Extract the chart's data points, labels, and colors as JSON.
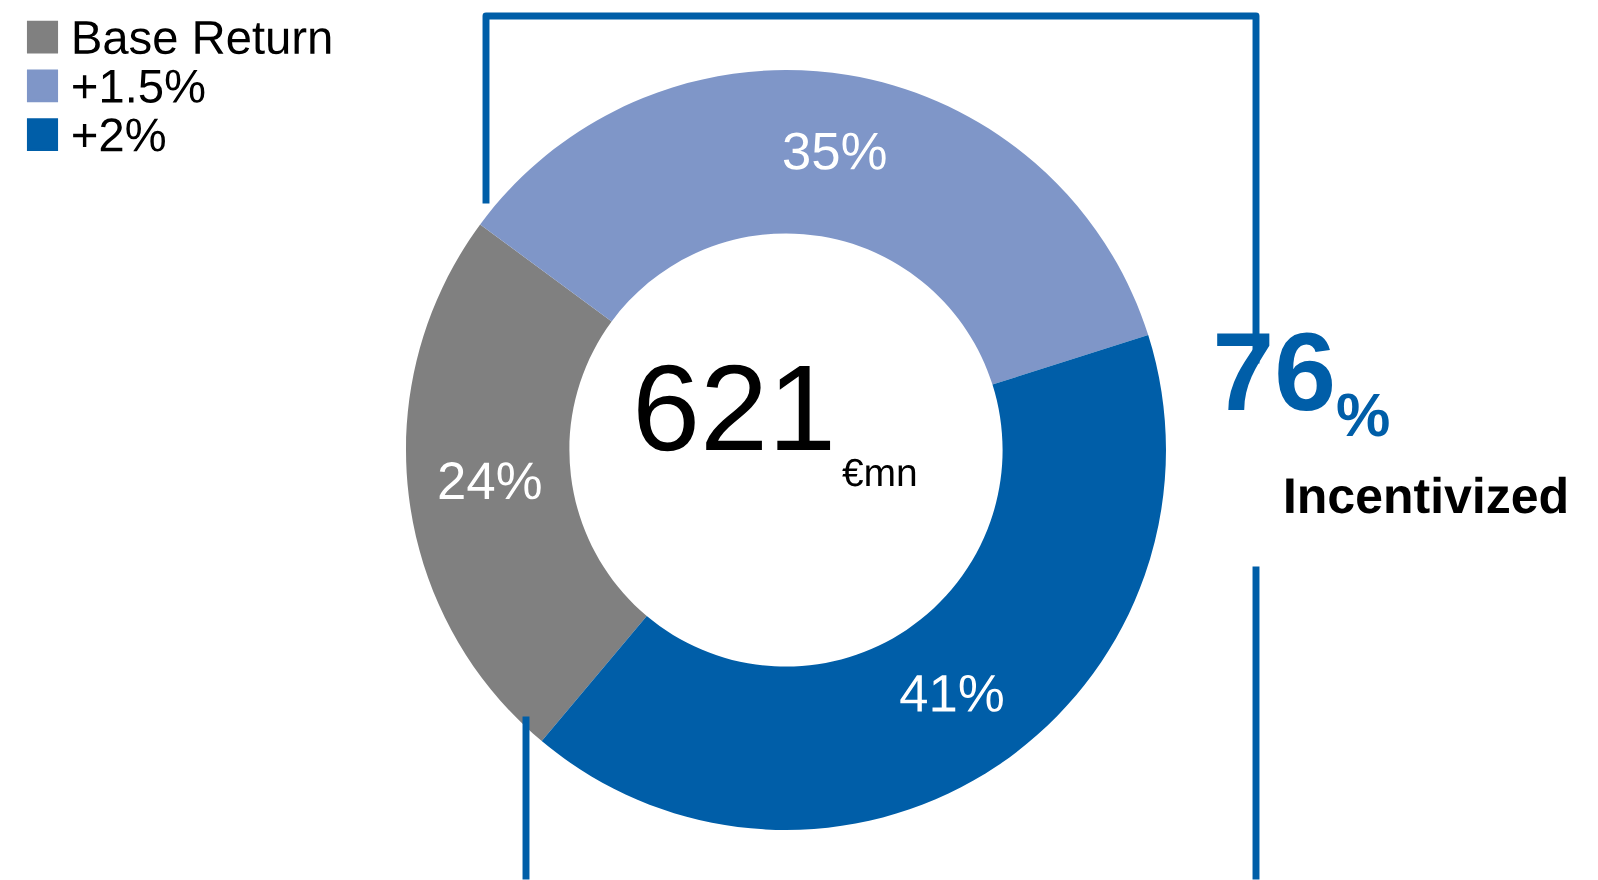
{
  "chart_data": {
    "type": "donut",
    "categories": [
      "Base Return",
      "+1.5%",
      "+2%"
    ],
    "values": [
      24,
      35,
      41
    ],
    "colors": [
      "#808080",
      "#7f96c8",
      "#005ea8"
    ],
    "value_labels": [
      "24%",
      "35%",
      "41%"
    ],
    "legend": "top left",
    "annotations": [
      "621",
      "€mn",
      "76",
      "%",
      "Incentivized"
    ]
  }
}
